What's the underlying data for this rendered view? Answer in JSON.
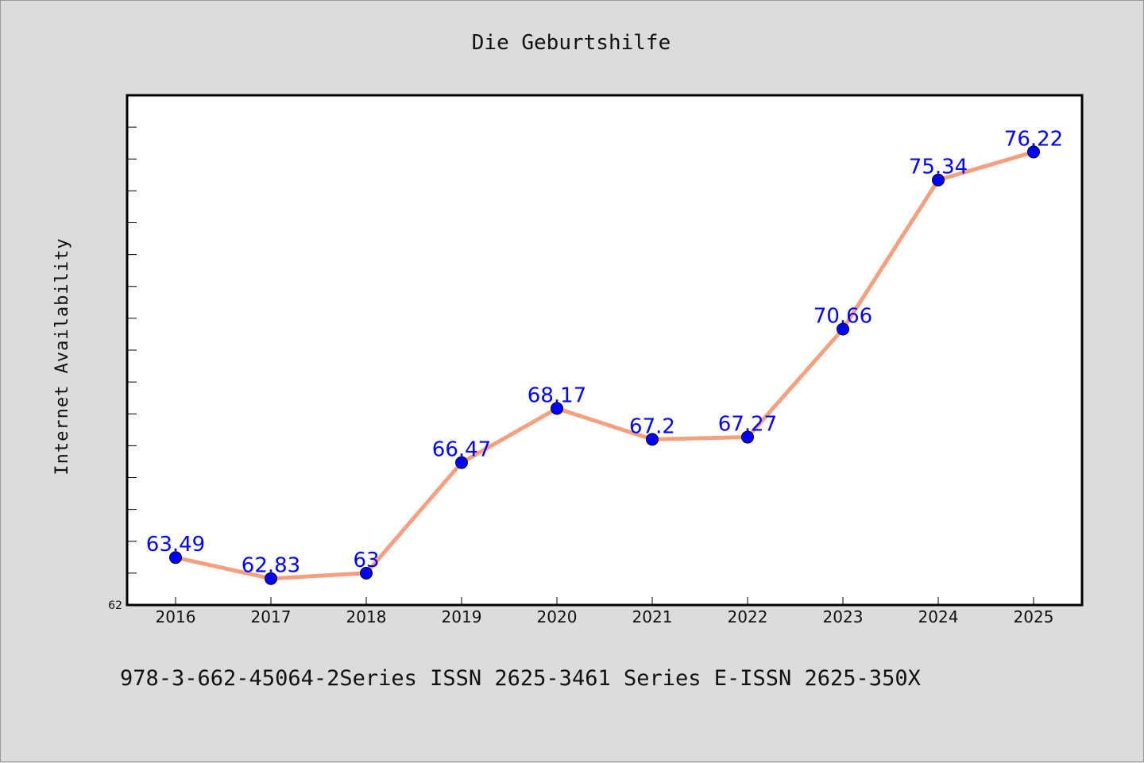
{
  "chart_data": {
    "type": "line",
    "title": "Die Geburtshilfe",
    "ylabel": "Internet Availability",
    "xlabel": "",
    "categories": [
      "2016",
      "2017",
      "2018",
      "2019",
      "2020",
      "2021",
      "2022",
      "2023",
      "2024",
      "2025"
    ],
    "values": [
      63.49,
      62.83,
      63,
      66.47,
      68.17,
      67.2,
      67.27,
      70.66,
      75.34,
      76.22
    ],
    "data_labels": [
      "63.49",
      "62.83",
      "63",
      "66.47",
      "68.17",
      "67.2",
      "67.27",
      "70.66",
      "75.34",
      "76.22"
    ],
    "ylim": [
      62,
      78
    ],
    "y_tick_labels": [
      "62"
    ],
    "grid": false,
    "line_color": "#f4a07f",
    "marker_color": "#0000ff",
    "label_color": "#0000ff",
    "background": "#dcdcdc",
    "plot_background": "#ffffff"
  },
  "footer": {
    "text": "978-3-662-45064-2Series ISSN 2625-3461 Series E-ISSN 2625-350X"
  }
}
